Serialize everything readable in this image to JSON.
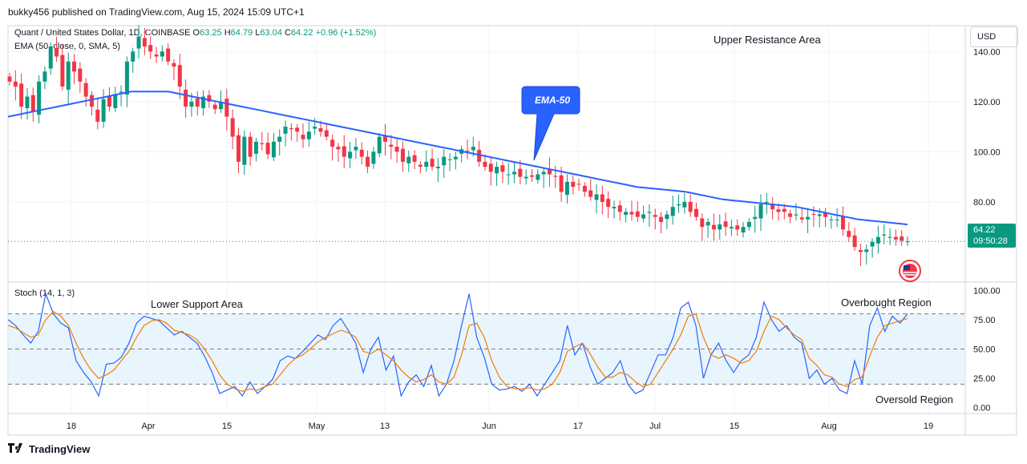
{
  "header": {
    "published": "bukky456 published on TradingView.com, Aug 15, 2024 15:09 UTC+1"
  },
  "legend": {
    "symbol": "Quant / United States Dollar, 1D, COINBASE",
    "open_label": "O",
    "open": "63.25",
    "high_label": "H",
    "high": "64.79",
    "low_label": "L",
    "low": "63.04",
    "close_label": "C",
    "close": "64.22",
    "change": "+0.96 (+1.52%)",
    "ema": "EMA (50, close, 0, SMA, 5)",
    "stoch": "Stoch (14, 1, 3)"
  },
  "currency": "USD",
  "price_tag": {
    "price": "64.22",
    "countdown": "09:50:28"
  },
  "annotations": {
    "upper_resistance": "Upper Resistance Area",
    "lower_support": "Lower Support Area",
    "overbought": "Overbought Region",
    "oversold": "Oversold Region",
    "ema_callout": "EMA-50"
  },
  "footer": {
    "brand": "TradingView"
  },
  "colors": {
    "up": "#089981",
    "down": "#f23645",
    "ema": "#2962ff",
    "k": "#2962ff",
    "d": "#f57c00",
    "band": "#e3f2fd"
  },
  "chart_data": [
    {
      "type": "candlestick",
      "title": "Quant / United States Dollar, 1D, COINBASE",
      "x_tick_labels": [
        "18",
        "Apr",
        "15",
        "May",
        "13",
        "Jun",
        "17",
        "Jul",
        "15",
        "Aug",
        "19"
      ],
      "y_ticks": [
        80,
        100,
        120,
        140
      ],
      "y_tick_labels": [
        "80.00",
        "100.00",
        "120.00",
        "140.00"
      ],
      "ylim": [
        48,
        150
      ],
      "last_price": 64.22,
      "ohlc_close": [
        128,
        126,
        118,
        122,
        116,
        128,
        132,
        142,
        138,
        126,
        136,
        132,
        128,
        122,
        118,
        112,
        121,
        118,
        123,
        124,
        136,
        140,
        146,
        142,
        140,
        138,
        140,
        136,
        134,
        126,
        118,
        120,
        118,
        122,
        120,
        117,
        120,
        114,
        106,
        96,
        106,
        98,
        104,
        103,
        99,
        104,
        106,
        110,
        109,
        108,
        105,
        108,
        110,
        108,
        106,
        102,
        101,
        98,
        100,
        102,
        98,
        94,
        100,
        106,
        104,
        102,
        100,
        96,
        98,
        96,
        94,
        96,
        94,
        94,
        98,
        97,
        98,
        101,
        100,
        102,
        96,
        94,
        92,
        94,
        92,
        91,
        92,
        90,
        90,
        90,
        91,
        92,
        91,
        90,
        84,
        88,
        86,
        87,
        84,
        82,
        83,
        80,
        78,
        78,
        76,
        76,
        75,
        74,
        75,
        76,
        74,
        72,
        75,
        78,
        79,
        80,
        76,
        74,
        70,
        72,
        69,
        71,
        70,
        70,
        69,
        70,
        72,
        74,
        79,
        80,
        77,
        76,
        76,
        74,
        75,
        73,
        74,
        75,
        75,
        74,
        73,
        73,
        69,
        66,
        62,
        60,
        61,
        64,
        66,
        67,
        66,
        65,
        64.5,
        64.22
      ],
      "ema50": [
        114,
        115,
        116,
        117,
        118,
        119,
        120,
        121,
        122,
        123,
        124,
        124,
        124,
        124,
        123,
        122,
        121,
        120,
        119,
        118,
        117,
        116,
        115,
        114,
        113,
        112,
        111,
        110,
        109,
        108,
        107,
        106,
        105,
        104,
        103,
        102,
        101,
        100,
        99,
        98,
        97,
        96,
        95,
        94,
        93,
        92,
        91,
        90,
        89,
        88,
        87,
        86,
        85.5,
        85,
        84.5,
        84,
        83,
        82,
        81,
        80.5,
        80,
        79.5,
        79,
        78.5,
        78,
        77,
        76,
        75,
        74,
        73,
        72.5,
        72,
        71.5,
        71
      ]
    },
    {
      "type": "line",
      "title": "Stoch (14, 1, 3)",
      "y_ticks": [
        0,
        25,
        50,
        75,
        100
      ],
      "y_tick_labels": [
        "0.00",
        "25.00",
        "50.00",
        "75.00",
        "100.00"
      ],
      "ylim": [
        -5,
        105
      ],
      "band": [
        20,
        80
      ],
      "series": [
        {
          "name": "%K",
          "values": [
            75,
            70,
            62,
            55,
            65,
            97,
            80,
            72,
            68,
            40,
            30,
            22,
            10,
            37,
            38,
            43,
            55,
            72,
            78,
            76,
            74,
            68,
            62,
            65,
            60,
            55,
            44,
            30,
            12,
            15,
            18,
            10,
            22,
            12,
            18,
            24,
            40,
            44,
            42,
            48,
            55,
            62,
            58,
            70,
            76,
            66,
            55,
            30,
            50,
            60,
            32,
            44,
            10,
            22,
            28,
            18,
            36,
            10,
            20,
            40,
            70,
            97,
            60,
            43,
            20,
            15,
            16,
            18,
            14,
            20,
            10,
            20,
            30,
            40,
            70,
            45,
            55,
            35,
            20,
            25,
            30,
            40,
            20,
            12,
            15,
            30,
            45,
            45,
            60,
            85,
            90,
            70,
            25,
            45,
            55,
            40,
            30,
            40,
            45,
            60,
            90,
            75,
            65,
            70,
            60,
            55,
            25,
            32,
            20,
            25,
            15,
            12,
            40,
            20,
            70,
            85,
            65,
            78,
            72,
            80
          ]
        },
        {
          "name": "%D",
          "values": [
            70,
            68,
            64,
            60,
            62,
            75,
            82,
            78,
            70,
            55,
            42,
            32,
            25,
            28,
            32,
            40,
            48,
            60,
            70,
            74,
            75,
            72,
            66,
            64,
            62,
            58,
            50,
            40,
            28,
            20,
            16,
            14,
            16,
            15,
            18,
            20,
            28,
            36,
            42,
            45,
            50,
            56,
            60,
            63,
            66,
            64,
            60,
            48,
            46,
            50,
            45,
            40,
            32,
            26,
            22,
            24,
            28,
            22,
            20,
            26,
            45,
            70,
            72,
            60,
            40,
            26,
            18,
            16,
            16,
            17,
            15,
            16,
            20,
            30,
            48,
            52,
            55,
            46,
            35,
            26,
            26,
            30,
            28,
            22,
            18,
            20,
            30,
            40,
            50,
            62,
            78,
            80,
            60,
            45,
            42,
            45,
            42,
            38,
            40,
            48,
            65,
            78,
            75,
            68,
            62,
            58,
            42,
            36,
            28,
            26,
            20,
            18,
            24,
            26,
            44,
            60,
            70,
            72,
            74,
            76
          ]
        }
      ]
    }
  ]
}
